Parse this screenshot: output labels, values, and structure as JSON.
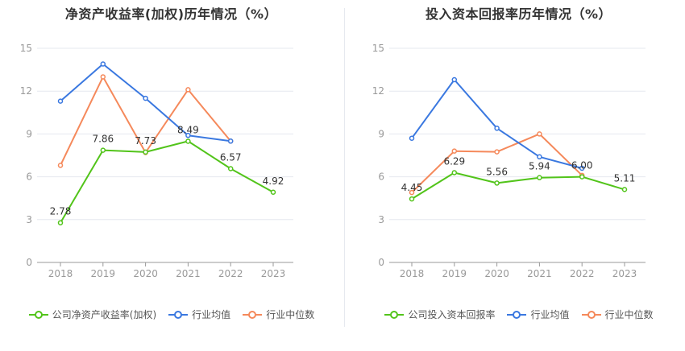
{
  "chart_data": [
    {
      "type": "line",
      "title": "净资产收益率(加权)历年情况（%）",
      "categories": [
        "2018",
        "2019",
        "2020",
        "2021",
        "2022",
        "2023"
      ],
      "ylim": [
        0,
        15
      ],
      "yticks": [
        0,
        3,
        6,
        9,
        12,
        15
      ],
      "grid": true,
      "legend_position": "bottom",
      "series": [
        {
          "name": "公司净资产收益率(加权)",
          "color": "#52c41a",
          "values": [
            2.78,
            7.86,
            7.73,
            8.49,
            6.57,
            4.92
          ],
          "labels": [
            "2.78",
            "7.86",
            "7.73",
            "8.49",
            "6.57",
            "4.92"
          ]
        },
        {
          "name": "行业均值",
          "color": "#3a78e0",
          "values": [
            11.3,
            13.9,
            11.5,
            8.9,
            8.5,
            null
          ]
        },
        {
          "name": "行业中位数",
          "color": "#f5895b",
          "values": [
            6.8,
            13.0,
            7.7,
            12.1,
            8.5,
            null
          ]
        }
      ]
    },
    {
      "type": "line",
      "title": "投入资本回报率历年情况（%）",
      "categories": [
        "2018",
        "2019",
        "2020",
        "2021",
        "2022",
        "2023"
      ],
      "ylim": [
        0,
        15
      ],
      "yticks": [
        0,
        3,
        6,
        9,
        12,
        15
      ],
      "grid": true,
      "legend_position": "bottom",
      "series": [
        {
          "name": "公司投入资本回报率",
          "color": "#52c41a",
          "values": [
            4.45,
            6.29,
            5.56,
            5.94,
            6.0,
            5.11
          ],
          "labels": [
            "4.45",
            "6.29",
            "5.56",
            "5.94",
            "6.00",
            "5.11"
          ]
        },
        {
          "name": "行业均值",
          "color": "#3a78e0",
          "values": [
            8.7,
            12.8,
            9.4,
            7.4,
            6.6,
            null
          ]
        },
        {
          "name": "行业中位数",
          "color": "#f5895b",
          "values": [
            4.9,
            7.8,
            7.75,
            9.0,
            6.1,
            null
          ]
        }
      ]
    }
  ]
}
